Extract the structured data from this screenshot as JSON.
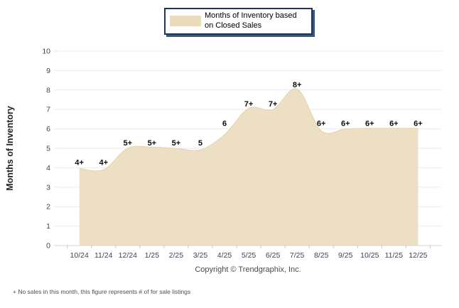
{
  "legend": {
    "label": "Months of Inventory based on Closed Sales"
  },
  "copyright": "Copyright © Trendgraphix, Inc.",
  "footnote": "+ No sales in this month, this figure represents # of for sale listings",
  "chart_data": {
    "type": "area",
    "title": "Months of Inventory based on Closed Sales",
    "xlabel": "",
    "ylabel": "Months of Inventory",
    "ylim": [
      0,
      10
    ],
    "grid": true,
    "legend_position": "top-center",
    "y_ticks": [
      0,
      1,
      2,
      3,
      4,
      5,
      6,
      7,
      8,
      9,
      10
    ],
    "categories": [
      "10/24",
      "11/24",
      "12/24",
      "1/25",
      "2/25",
      "3/25",
      "4/25",
      "5/25",
      "6/25",
      "7/25",
      "8/25",
      "9/25",
      "10/25",
      "11/25",
      "12/25"
    ],
    "values": [
      3.97,
      3.9,
      5.0,
      5.06,
      5.0,
      4.92,
      5.7,
      7.06,
      7.0,
      8.05,
      5.9,
      6.0,
      6.03,
      6.03,
      6.03
    ],
    "data_labels": [
      "4+",
      "4+",
      "5+",
      "5+",
      "5+",
      "5",
      "6",
      "7+",
      "7+",
      "8+",
      "6+",
      "6+",
      "6+",
      "6+",
      "6+"
    ],
    "colors": {
      "area_fill": "#ecdfc3",
      "area_stroke": "#e2d3ab",
      "grid": "#eaeaf2",
      "axis": "#d4d4de",
      "tick_mark": "#c8c8d2",
      "tick_label": "#3d4552",
      "data_label": "#0a0a0a",
      "legend_border": "#17375e",
      "legend_swatch": "#e9dcbc"
    }
  }
}
